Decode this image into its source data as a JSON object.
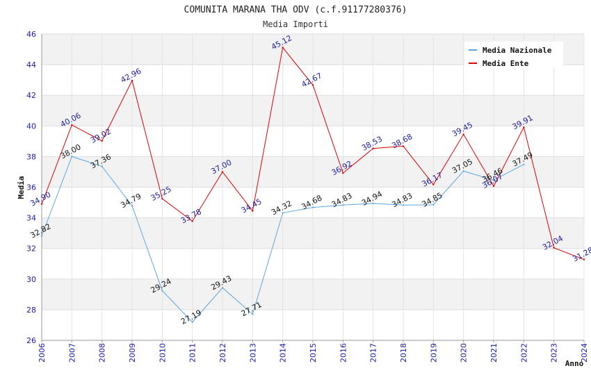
{
  "chart_data": {
    "type": "line",
    "title": "COMUNITA MARANA THA ODV (c.f.91177280376)",
    "subtitle": "Media Importi",
    "xlabel": "Anno",
    "ylabel": "Media",
    "ylim": [
      26,
      46
    ],
    "yticks": [
      "26",
      "28",
      "30",
      "32",
      "34",
      "36",
      "38",
      "40",
      "42",
      "44",
      "46"
    ],
    "categories": [
      "2006",
      "2007",
      "2008",
      "2009",
      "2010",
      "2011",
      "2012",
      "2013",
      "2014",
      "2015",
      "2016",
      "2017",
      "2018",
      "2019",
      "2020",
      "2021",
      "2022",
      "2023",
      "2024"
    ],
    "legend_position": "top-right",
    "series": [
      {
        "name": "Media Nazionale",
        "color": "#5ca7e0",
        "values": [
          32.82,
          38.0,
          37.36,
          34.79,
          29.24,
          27.19,
          29.43,
          27.71,
          34.32,
          34.68,
          34.83,
          34.94,
          34.83,
          34.85,
          37.05,
          36.46,
          37.49,
          null,
          null
        ],
        "labels": [
          "32.82",
          "38.00",
          "37.36",
          "34.79",
          "29.24",
          "27.19",
          "29.43",
          "27.71",
          "34.32",
          "34.68",
          "34.83",
          "34.94",
          "34.83",
          "34.85",
          "37.05",
          "36.46",
          "37.49",
          "",
          ""
        ]
      },
      {
        "name": "Media Ente",
        "color": "#dd0000",
        "values": [
          34.9,
          40.06,
          39.02,
          42.96,
          35.25,
          33.78,
          37.0,
          34.45,
          45.12,
          42.67,
          36.92,
          38.53,
          38.68,
          36.17,
          39.45,
          36.07,
          39.91,
          32.04,
          31.28
        ],
        "labels": [
          "34.90",
          "40.06",
          "39.02",
          "42.96",
          "35.25",
          "33.78",
          "37.00",
          "34.45",
          "45.12",
          "42.67",
          "36.92",
          "38.53",
          "38.68",
          "36.17",
          "39.45",
          "36.07",
          "39.91",
          "32.04",
          "31.28"
        ]
      }
    ]
  }
}
